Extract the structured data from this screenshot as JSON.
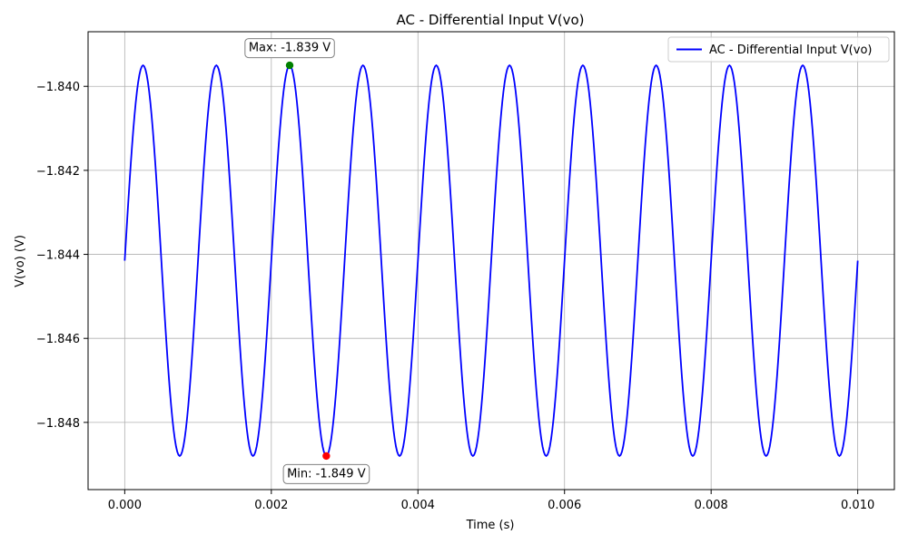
{
  "chart_data": {
    "type": "line",
    "title": "AC - Differential Input V(vo)",
    "xlabel": "Time (s)",
    "ylabel": "V(vo) (V)",
    "xlim": [
      -0.0005,
      0.0105
    ],
    "ylim": [
      -1.8496,
      -1.8387
    ],
    "xticks": [
      0.0,
      0.002,
      0.004,
      0.006,
      0.008,
      0.01
    ],
    "xtick_labels": [
      "0.000",
      "0.002",
      "0.004",
      "0.006",
      "0.008",
      "0.010"
    ],
    "yticks": [
      -1.848,
      -1.846,
      -1.844,
      -1.842,
      -1.84
    ],
    "ytick_labels": [
      "−1.848",
      "−1.846",
      "−1.844",
      "−1.842",
      "−1.840"
    ],
    "grid": true,
    "legend_position": "top-right",
    "series": [
      {
        "name": "AC - Differential Input V(vo)",
        "color": "#0000ff",
        "function": "sine",
        "x_start": 0.0,
        "x_end": 0.01,
        "offset": -1.84415,
        "amplitude": 0.00465,
        "frequency_hz": 1000,
        "phase": 0
      }
    ],
    "markers": [
      {
        "label": "Max: -1.839 V",
        "x": 0.00225,
        "y": -1.8395,
        "color": "#008000",
        "label_side": "above"
      },
      {
        "label": "Min: -1.849 V",
        "x": 0.00275,
        "y": -1.8488,
        "color": "#ff0000",
        "label_side": "below"
      }
    ]
  }
}
